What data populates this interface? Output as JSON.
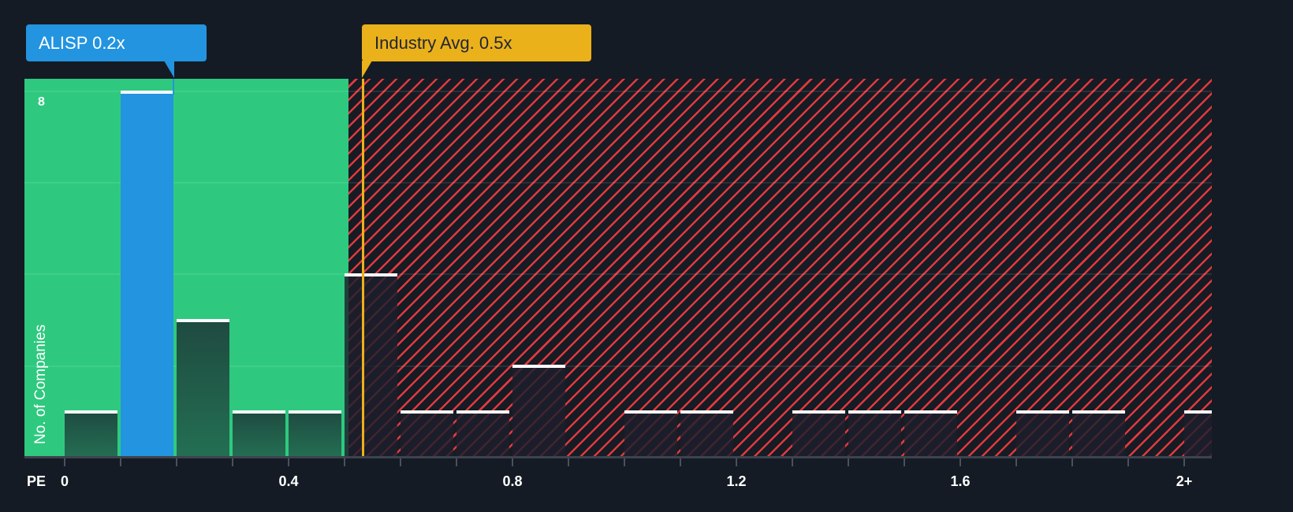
{
  "chart_data": {
    "type": "bar",
    "title": "",
    "xlabel": "PE",
    "ylabel": "No. of Companies",
    "x_ticks": [
      "0",
      "0.4",
      "0.8",
      "1.2",
      "1.6",
      "2+"
    ],
    "y_ticks": [
      "8"
    ],
    "ylim": [
      0,
      8.3
    ],
    "grid": true,
    "bin_width": 0.1,
    "categories": [
      "0-0.1",
      "0.1-0.2",
      "0.2-0.3",
      "0.3-0.4",
      "0.4-0.5",
      "0.5-0.6",
      "0.6-0.7",
      "0.7-0.8",
      "0.8-0.9",
      "0.9-1.0",
      "1.0-1.1",
      "1.1-1.2",
      "1.2-1.3",
      "1.3-1.4",
      "1.4-1.5",
      "1.5-1.6",
      "1.6-1.7",
      "1.7-1.8",
      "1.8-1.9",
      "1.9-2.0",
      "2+"
    ],
    "values": [
      1,
      8,
      3,
      1,
      1,
      4,
      1,
      1,
      2,
      0,
      1,
      1,
      0,
      1,
      1,
      1,
      0,
      1,
      1,
      0,
      1
    ],
    "highlighted_bin": "0.1-0.2",
    "annotations": [
      {
        "label": "ALISP 0.2x",
        "value": 0.2,
        "color": "#2394df"
      },
      {
        "label": "Industry Avg. 0.5x",
        "value": 0.5,
        "color": "#ebb11b"
      }
    ],
    "zones": [
      {
        "name": "below-industry",
        "color": "#2ec97f",
        "range": [
          0,
          0.5
        ]
      },
      {
        "name": "above-industry",
        "color": "#e0393e",
        "pattern": "hatched",
        "range": [
          0.5,
          "2+"
        ]
      }
    ]
  },
  "labels": {
    "company_callout": "ALISP 0.2x",
    "industry_callout": "Industry Avg. 0.5x",
    "y_axis_title": "No. of Companies",
    "y_tick_8": "8",
    "x_axis_prefix": "PE",
    "x_ticks": [
      "0",
      "0.4",
      "0.8",
      "1.2",
      "1.6",
      "2+"
    ]
  },
  "colors": {
    "background": "#151b24",
    "company": "#2394df",
    "industry": "#ebb11b",
    "good_zone": "#2ec97f",
    "bad_zone": "#e0393e"
  }
}
